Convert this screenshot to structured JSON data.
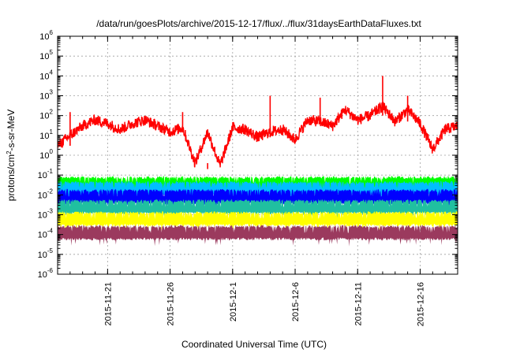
{
  "chart_data": {
    "type": "line",
    "title": "/data/run/goesPlots/archive/2015-12-17/flux/../flux/31daysEarthDataFluxes.txt",
    "xlabel": "Coordinated Universal Time (UTC)",
    "ylabel": "protons/cm²-s-sr-MeV",
    "yscale": "log",
    "ylim_exponents": [
      -6,
      6
    ],
    "y_tick_labels": [
      "10-6",
      "10-5",
      "10-4",
      "10-3",
      "10-2",
      "10-1",
      "100",
      "101",
      "102",
      "103",
      "104",
      "105",
      "106"
    ],
    "xlim": [
      "2015-11-17T00:00",
      "2015-12-19T00:00"
    ],
    "x_tick_labels": [
      "2015-11-21",
      "2015-11-26",
      "2015-12-1",
      "2015-12-6",
      "2015-12-11",
      "2015-12-16"
    ],
    "x_tick_dates": [
      "2015-11-21",
      "2015-11-26",
      "2015-12-01",
      "2015-12-06",
      "2015-12-11",
      "2015-12-16"
    ],
    "grid": true,
    "legend": "none",
    "series": [
      {
        "color": "#ff0000",
        "stroke": "line",
        "description": "high, spiky series",
        "x": [
          "2015-11-17",
          "2015-11-18",
          "2015-11-19",
          "2015-11-20",
          "2015-11-21",
          "2015-11-22",
          "2015-11-23",
          "2015-11-24",
          "2015-11-25",
          "2015-11-26",
          "2015-11-27",
          "2015-11-28",
          "2015-11-29",
          "2015-11-30",
          "2015-12-01",
          "2015-12-02",
          "2015-12-03",
          "2015-12-04",
          "2015-12-05",
          "2015-12-06",
          "2015-12-07",
          "2015-12-08",
          "2015-12-09",
          "2015-12-10",
          "2015-12-11",
          "2015-12-12",
          "2015-12-13",
          "2015-12-14",
          "2015-12-15",
          "2015-12-16",
          "2015-12-17",
          "2015-12-18",
          "2015-12-19"
        ],
        "y": [
          3,
          10,
          30,
          60,
          40,
          20,
          40,
          60,
          30,
          15,
          25,
          0.4,
          15,
          0.3,
          25,
          20,
          8,
          15,
          20,
          6,
          60,
          50,
          30,
          200,
          60,
          100,
          300,
          50,
          200,
          40,
          2,
          20,
          30
        ],
        "spikes": [
          {
            "x": "2015-11-18",
            "y": 150
          },
          {
            "x": "2015-11-27",
            "y": 150
          },
          {
            "x": "2015-11-29",
            "y": 0.2
          },
          {
            "x": "2015-12-04",
            "y": 1000
          },
          {
            "x": "2015-12-08",
            "y": 800
          },
          {
            "x": "2015-12-13",
            "y": 10000
          },
          {
            "x": "2015-12-15",
            "y": 1000
          }
        ]
      },
      {
        "color": "#00ff00",
        "stroke": "band",
        "y_low": 0.015,
        "y_high": 0.09
      },
      {
        "color": "#00bfff",
        "stroke": "band",
        "y_low": 0.008,
        "y_high": 0.05
      },
      {
        "color": "#0000ff",
        "stroke": "band",
        "y_low": 0.003,
        "y_high": 0.02
      },
      {
        "color": "#20c0a0",
        "stroke": "band",
        "y_low": 0.001,
        "y_high": 0.006
      },
      {
        "color": "#ffff00",
        "stroke": "band",
        "y_low": 0.00025,
        "y_high": 0.0015
      },
      {
        "color": "#9b3a5e",
        "stroke": "band",
        "y_low": 5e-05,
        "y_high": 0.0003
      }
    ]
  }
}
